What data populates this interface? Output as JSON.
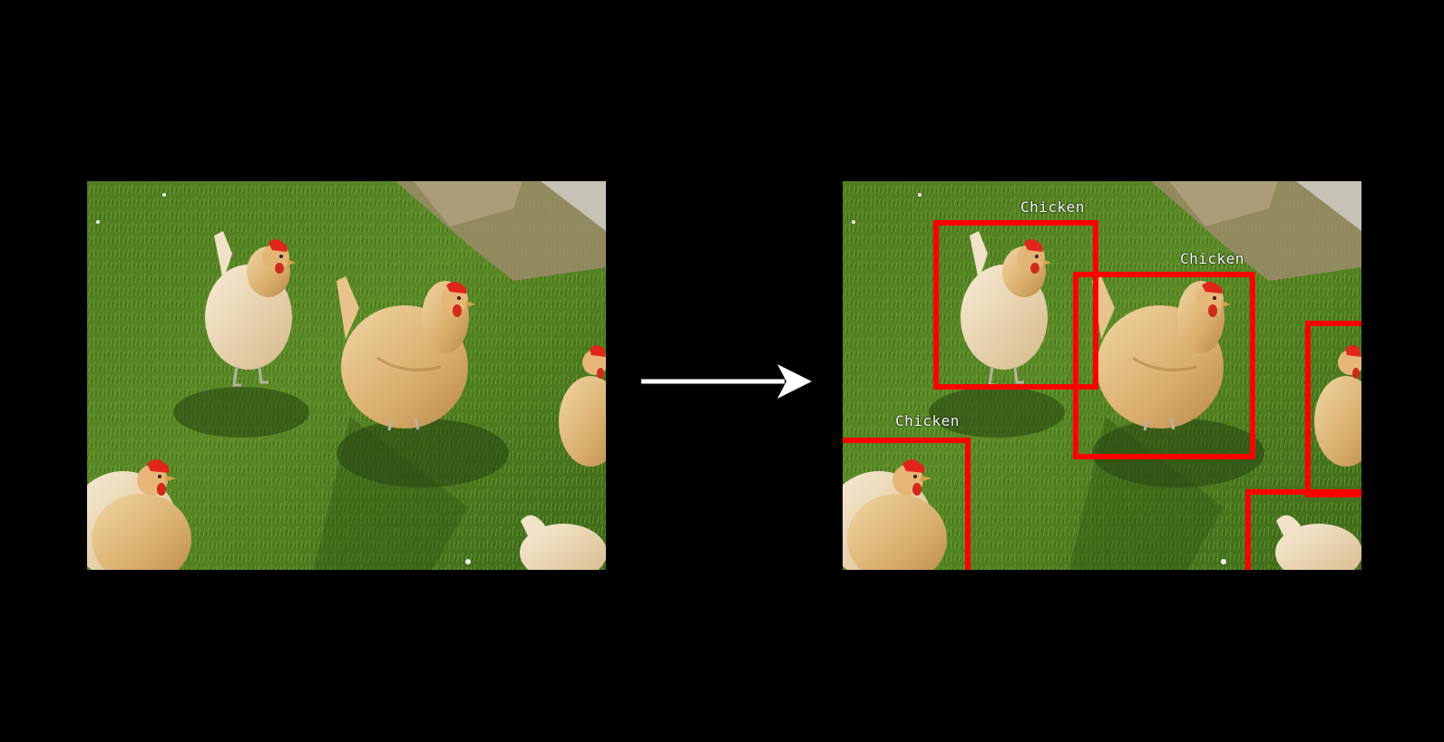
{
  "detections": {
    "class_label": "Chicken",
    "box_color": "#ff0000",
    "boxes": [
      {
        "label": "Chicken"
      },
      {
        "label": "Chicken"
      },
      {
        "label": "Chicken"
      },
      {
        "label": ""
      },
      {
        "label": ""
      }
    ]
  },
  "icons": {
    "arrow": "right-arrow-icon"
  }
}
